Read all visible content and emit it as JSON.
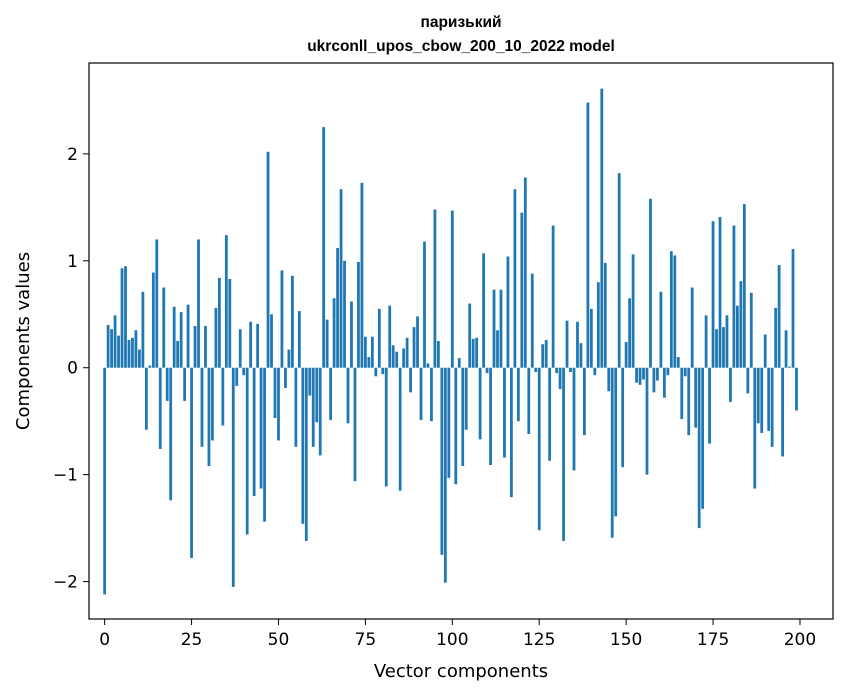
{
  "chart_data": {
    "type": "bar",
    "title": [
      "паризький",
      "ukrconll_upos_cbow_200_10_2022 model"
    ],
    "xlabel": "Vector components",
    "ylabel": "Components values",
    "xlim": [
      -4.5,
      209.5
    ],
    "ylim": [
      -2.35,
      2.85
    ],
    "xticks": [
      0,
      25,
      50,
      75,
      100,
      125,
      150,
      175,
      200
    ],
    "yticks": [
      -2,
      -1,
      0,
      1,
      2
    ],
    "ytick_labels": [
      "−2",
      "−1",
      "0",
      "1",
      "2"
    ],
    "grid": false,
    "bar_color": "#1f77b4",
    "values": [
      -2.12,
      0.4,
      0.36,
      0.49,
      0.3,
      0.93,
      0.95,
      0.26,
      0.28,
      0.35,
      0.17,
      0.71,
      -0.58,
      0.02,
      0.89,
      1.2,
      -0.76,
      0.75,
      -0.31,
      -1.24,
      0.57,
      0.25,
      0.52,
      -0.31,
      0.59,
      -1.78,
      0.39,
      1.2,
      -0.74,
      0.39,
      -0.92,
      -0.68,
      0.56,
      0.84,
      -0.54,
      1.24,
      0.83,
      -2.05,
      -0.17,
      0.36,
      -0.07,
      -1.56,
      0.43,
      -1.2,
      0.41,
      -1.13,
      -1.44,
      2.02,
      0.5,
      -0.47,
      -0.68,
      0.91,
      -0.19,
      0.17,
      0.86,
      -0.74,
      0.53,
      -1.46,
      -1.62,
      -0.26,
      -0.74,
      -0.51,
      -0.82,
      2.25,
      0.45,
      -0.49,
      0.65,
      1.12,
      1.67,
      1.0,
      -0.52,
      0.62,
      -1.06,
      0.99,
      1.73,
      0.29,
      0.1,
      0.29,
      -0.08,
      0.55,
      -0.06,
      -1.11,
      0.58,
      0.21,
      0.15,
      -1.15,
      0.18,
      0.28,
      -0.23,
      0.38,
      0.48,
      -0.49,
      1.18,
      0.04,
      -0.5,
      1.48,
      0.25,
      -1.75,
      -2.01,
      -1.03,
      1.47,
      -1.09,
      0.09,
      -0.92,
      -0.58,
      0.6,
      0.27,
      0.28,
      -0.67,
      1.07,
      -0.05,
      -0.91,
      0.73,
      0.35,
      0.73,
      -0.84,
      1.04,
      -1.21,
      1.67,
      -0.5,
      1.45,
      1.78,
      -0.62,
      0.88,
      -0.04,
      -1.52,
      0.22,
      0.26,
      -0.87,
      1.33,
      -0.05,
      -0.2,
      -1.62,
      0.44,
      -0.04,
      -0.96,
      0.43,
      0.23,
      -0.63,
      2.48,
      0.55,
      -0.07,
      0.8,
      2.61,
      0.98,
      -0.22,
      -1.59,
      -1.39,
      1.82,
      -0.93,
      0.24,
      0.65,
      1.06,
      -0.14,
      -0.16,
      -0.11,
      -1.0,
      1.58,
      -0.23,
      -0.12,
      0.71,
      -0.28,
      -0.07,
      1.09,
      1.05,
      0.1,
      -0.48,
      -0.08,
      -0.63,
      0.75,
      -0.56,
      -1.5,
      -1.32,
      0.49,
      -0.71,
      1.37,
      0.36,
      1.41,
      0.38,
      0.49,
      -0.32,
      1.33,
      0.58,
      0.81,
      1.53,
      -0.24,
      0.7,
      -1.13,
      -0.52,
      -0.61,
      0.31,
      -0.59,
      -0.74,
      0.56,
      0.96,
      -0.83,
      0.35,
      0.01,
      1.11,
      -0.4
    ]
  }
}
